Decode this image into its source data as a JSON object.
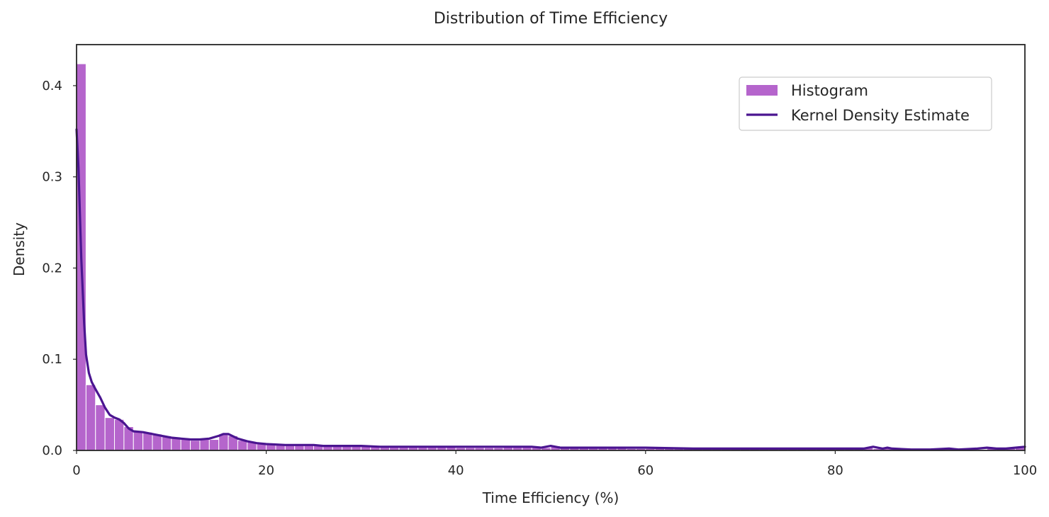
{
  "chart_data": {
    "type": "bar",
    "title": "Distribution of Time Efficiency",
    "xlabel": "Time Efficiency (%)",
    "ylabel": "Density",
    "xlim": [
      0,
      100
    ],
    "ylim": [
      0,
      0.445
    ],
    "xticks": [
      "0",
      "20",
      "40",
      "60",
      "80",
      "100"
    ],
    "yticks": [
      "0.0",
      "0.1",
      "0.2",
      "0.3",
      "0.4"
    ],
    "grid": false,
    "legend_position": "top-right",
    "colors": {
      "histogram": "#b565cc",
      "kde": "#4a1590",
      "bar_edge": "#ffffff",
      "axes": "#262626"
    },
    "series": [
      {
        "name": "Histogram",
        "kind": "histogram",
        "bin_width": 1,
        "x_start": 0,
        "values": [
          0.424,
          0.072,
          0.05,
          0.036,
          0.034,
          0.026,
          0.021,
          0.02,
          0.018,
          0.016,
          0.014,
          0.013,
          0.011,
          0.012,
          0.012,
          0.018,
          0.016,
          0.011,
          0.009,
          0.008,
          0.007,
          0.007,
          0.006,
          0.006,
          0.006,
          0.006,
          0.005,
          0.005,
          0.005,
          0.005,
          0.005,
          0.004,
          0.004,
          0.004,
          0.004,
          0.004,
          0.004,
          0.004,
          0.004,
          0.004,
          0.003,
          0.003,
          0.003,
          0.003,
          0.003,
          0.004,
          0.004,
          0.004,
          0.004,
          0.003,
          0.005,
          0.003,
          0.003,
          0.003,
          0.003,
          0.003,
          0.003,
          0.003,
          0.002,
          0.002,
          0.002,
          0.002,
          0.002,
          0.002,
          0.002,
          0.002,
          0.002,
          0.002,
          0.002,
          0.002,
          0.002,
          0.002,
          0.002,
          0.002,
          0.002,
          0.002,
          0.002,
          0.002,
          0.002,
          0.002,
          0.002,
          0.002,
          0.002,
          0.003,
          0.002,
          0.003,
          0.002,
          0.002,
          0.001,
          0.001,
          0.001,
          0.001,
          0.002,
          0.001,
          0.001,
          0.001,
          0.002,
          0.002,
          0.002,
          0.003
        ]
      },
      {
        "name": "Kernel Density Estimate",
        "kind": "line",
        "x": [
          0,
          0.2,
          0.5,
          0.8,
          1.0,
          1.3,
          1.6,
          2.0,
          2.5,
          3.0,
          3.5,
          4.0,
          4.5,
          5.0,
          5.5,
          6.0,
          7,
          8,
          9,
          10,
          11,
          12,
          13,
          14,
          15,
          15.5,
          16,
          17,
          18,
          19,
          20,
          22,
          24,
          25,
          26,
          28,
          30,
          32,
          35,
          40,
          43,
          45,
          48,
          49,
          50,
          51,
          52,
          55,
          60,
          65,
          70,
          75,
          80,
          82,
          83,
          84,
          85,
          85.5,
          86,
          88,
          90,
          92,
          93,
          95,
          96,
          97,
          98,
          99,
          100
        ],
        "y": [
          0.352,
          0.31,
          0.21,
          0.14,
          0.105,
          0.085,
          0.075,
          0.067,
          0.058,
          0.047,
          0.039,
          0.036,
          0.034,
          0.03,
          0.024,
          0.021,
          0.02,
          0.018,
          0.016,
          0.014,
          0.013,
          0.012,
          0.012,
          0.013,
          0.016,
          0.018,
          0.018,
          0.013,
          0.01,
          0.008,
          0.007,
          0.006,
          0.006,
          0.006,
          0.005,
          0.005,
          0.005,
          0.004,
          0.004,
          0.004,
          0.004,
          0.004,
          0.004,
          0.003,
          0.005,
          0.003,
          0.003,
          0.003,
          0.003,
          0.002,
          0.002,
          0.002,
          0.002,
          0.002,
          0.002,
          0.004,
          0.002,
          0.003,
          0.002,
          0.001,
          0.001,
          0.002,
          0.001,
          0.002,
          0.003,
          0.002,
          0.002,
          0.003,
          0.004
        ]
      }
    ]
  }
}
